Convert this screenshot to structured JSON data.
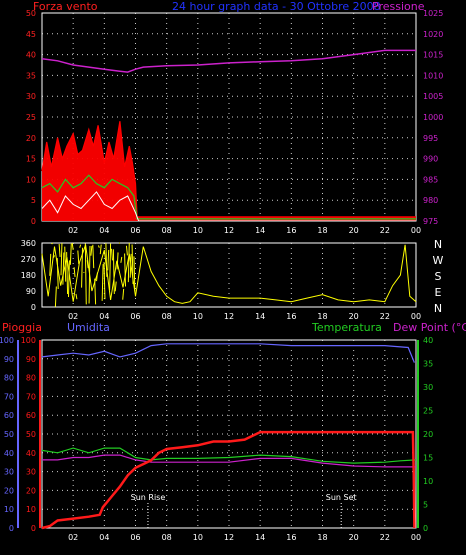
{
  "header": {
    "left": "Forza vento",
    "center": "24 hour graph data - 30 Ottobre 2008",
    "right": "Pressione"
  },
  "bottom_header": {
    "pioggia": "Pioggia",
    "umidita": "Umidita",
    "temperatura": "Temperatura",
    "dewpoint": "Dew Point (°C)"
  },
  "colors": {
    "wind_axis": "#ff2020",
    "pressure_axis": "#cc22cc",
    "rain": "#ff1a1a",
    "humidity": "#6666ff",
    "temperature": "#22cc22",
    "dewpoint": "#cc22cc",
    "direction": "#ffff00",
    "gust": "#ff0000",
    "avg_wind": "#22cc22",
    "min_wind": "#ffffff",
    "grid": "#ffffff",
    "border": "#ffffff"
  },
  "chart_data": [
    {
      "id": "wind-pressure",
      "type": "line",
      "x_ticks": [
        "02",
        "04",
        "06",
        "08",
        "10",
        "12",
        "14",
        "16",
        "18",
        "20",
        "22",
        "00"
      ],
      "x_range": [
        0,
        24
      ],
      "wind_ticks": [
        "0",
        "5",
        "10",
        "15",
        "20",
        "25",
        "30",
        "35",
        "40",
        "45",
        "50"
      ],
      "wind_range": [
        0,
        50
      ],
      "pressure_ticks": [
        "975",
        "980",
        "985",
        "990",
        "995",
        "1000",
        "1005",
        "1010",
        "1015",
        "1020",
        "1025"
      ],
      "pressure_range": [
        975,
        1025
      ],
      "series": [
        {
          "name": "Pressione",
          "key": "pressure",
          "x": [
            0,
            1,
            2,
            3,
            4,
            5,
            5.5,
            6,
            6.5,
            8,
            10,
            12,
            14,
            16,
            18,
            20,
            22,
            24
          ],
          "values": [
            1014,
            1013.5,
            1012.5,
            1012,
            1011.5,
            1011,
            1010.8,
            1011.5,
            1012,
            1012.3,
            1012.5,
            1013,
            1013.3,
            1013.5,
            1014,
            1015,
            1016,
            1016
          ]
        },
        {
          "key": "gust",
          "x": [
            0,
            0.3,
            0.6,
            1,
            1.3,
            1.6,
            2,
            2.3,
            2.6,
            3,
            3.3,
            3.6,
            4,
            4.3,
            4.6,
            5,
            5.3,
            5.6,
            5.8,
            6,
            6.1,
            24
          ],
          "values": [
            12,
            19,
            13,
            20,
            15,
            18,
            21,
            16,
            17,
            22,
            18,
            23,
            14,
            19,
            15,
            24,
            13,
            18,
            14,
            9,
            1,
            1
          ]
        },
        {
          "key": "avg",
          "x": [
            0,
            0.5,
            1,
            1.5,
            2,
            2.5,
            3,
            3.5,
            4,
            4.5,
            5,
            5.5,
            5.9,
            6.1,
            24
          ],
          "values": [
            8,
            9,
            7,
            10,
            8,
            9,
            11,
            9,
            8,
            10,
            9,
            8,
            6,
            0.5,
            0.5
          ]
        },
        {
          "key": "min",
          "x": [
            0,
            0.5,
            1,
            1.5,
            2,
            2.5,
            3,
            3.5,
            4,
            4.5,
            5,
            5.5,
            6,
            6.2,
            24
          ],
          "values": [
            3,
            5,
            2,
            6,
            4,
            3,
            5,
            7,
            4,
            3,
            5,
            6,
            2,
            0,
            0
          ]
        }
      ]
    },
    {
      "id": "wind-direction",
      "type": "line",
      "y_ticks": [
        "0",
        "90",
        "180",
        "270",
        "360"
      ],
      "y_range": [
        0,
        360
      ],
      "compass": [
        "N",
        "W",
        "S",
        "E",
        "N"
      ],
      "x": [
        0,
        0.4,
        0.8,
        1.2,
        1.6,
        2,
        2.4,
        2.8,
        3.2,
        3.6,
        4,
        4.4,
        4.8,
        5.2,
        5.6,
        6,
        6.5,
        7,
        7.5,
        8,
        8.5,
        9,
        9.5,
        10,
        11,
        12,
        13,
        14,
        15,
        16,
        17,
        18,
        19,
        20,
        21,
        22,
        22.5,
        23,
        23.3,
        23.6,
        24
      ],
      "values": [
        300,
        60,
        340,
        120,
        280,
        30,
        250,
        350,
        90,
        200,
        320,
        40,
        260,
        110,
        300,
        60,
        340,
        200,
        120,
        60,
        30,
        20,
        30,
        80,
        60,
        50,
        50,
        50,
        40,
        30,
        50,
        70,
        40,
        30,
        40,
        30,
        120,
        180,
        350,
        60,
        30
      ]
    },
    {
      "id": "rain-humidity-temp",
      "type": "line",
      "left_ticks": [
        "0",
        "10",
        "20",
        "30",
        "40",
        "50",
        "60",
        "70",
        "80",
        "90",
        "100"
      ],
      "left_range": [
        0,
        100
      ],
      "right_ticks": [
        "0",
        "5",
        "10",
        "15",
        "20",
        "25",
        "30",
        "35",
        "40"
      ],
      "right_range": [
        0,
        40
      ],
      "annotations": [
        "Sun Rise",
        "Sun Set"
      ],
      "annotation_x": [
        6.8,
        19.2
      ],
      "series": [
        {
          "name": "Umidita",
          "key": "humidity",
          "x": [
            0,
            1,
            2,
            3,
            4,
            5,
            6,
            7,
            8,
            10,
            12,
            14,
            16,
            18,
            20,
            22,
            23.5,
            23.9
          ],
          "values": [
            91,
            92,
            93,
            92,
            94,
            91,
            93,
            97,
            98,
            98,
            98,
            98,
            97,
            97,
            97,
            97,
            96,
            88
          ]
        },
        {
          "name": "Temperatura",
          "key": "temperature",
          "x": [
            0,
            1,
            2,
            3,
            4,
            5,
            6,
            7,
            8,
            10,
            12,
            14,
            16,
            18,
            20,
            22,
            23,
            24
          ],
          "values": [
            16.5,
            16,
            17,
            16,
            17,
            17,
            15,
            14.5,
            14.8,
            14.8,
            15,
            15.5,
            15.2,
            14.2,
            13.8,
            14,
            14.3,
            14.5
          ]
        },
        {
          "name": "Dew Point",
          "key": "dewpoint",
          "x": [
            0,
            1,
            2,
            3,
            4,
            5,
            6,
            7,
            8,
            10,
            12,
            14,
            16,
            18,
            20,
            22,
            23,
            24
          ],
          "values": [
            14.5,
            14.5,
            15,
            15,
            15.5,
            15.5,
            14.5,
            14,
            14,
            14,
            14,
            14.8,
            14.8,
            13.8,
            13.2,
            13,
            13,
            13
          ]
        },
        {
          "name": "Pioggia",
          "key": "rain",
          "x": [
            0,
            0.5,
            1,
            2,
            3,
            3.7,
            3.9,
            4.5,
            5,
            5.5,
            6,
            6.5,
            7,
            7.5,
            8,
            9,
            10,
            11,
            12,
            13,
            13.5,
            14,
            16,
            18,
            20,
            22,
            23.8,
            23.85,
            23.9
          ],
          "values": [
            0,
            1,
            4,
            5,
            6,
            7,
            11,
            17,
            22,
            28,
            32,
            34,
            36,
            40,
            42,
            43,
            44,
            46,
            46,
            47,
            49,
            51,
            51,
            51,
            51,
            51,
            51,
            30,
            0
          ]
        }
      ]
    }
  ]
}
